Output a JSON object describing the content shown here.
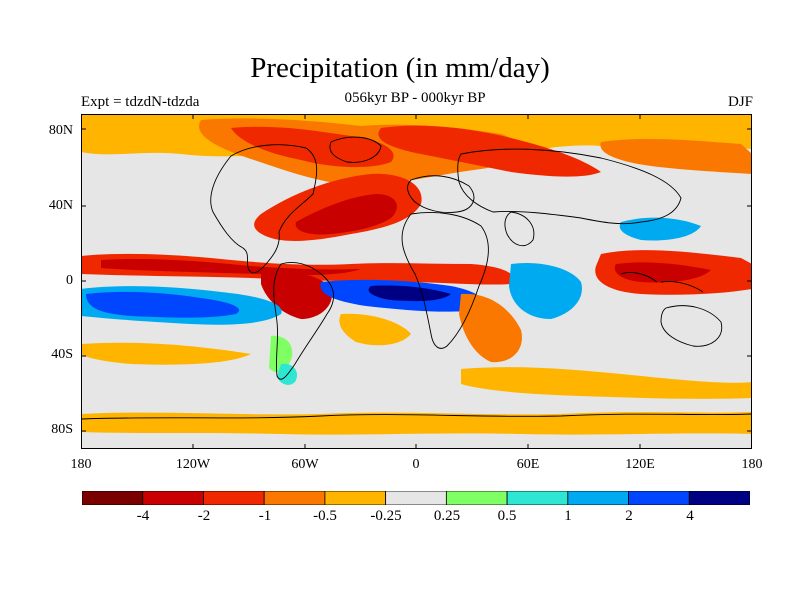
{
  "title": "Precipitation (in mm/day)",
  "subtitle": "056kyr BP - 000kyr BP",
  "left_label": "Expt = tdzdN-tdzda",
  "right_label": "DJF",
  "lat_labels": [
    "80N",
    "40N",
    "0",
    "40S",
    "80S"
  ],
  "lon_labels": [
    "180",
    "120W",
    "60W",
    "0",
    "60E",
    "120E",
    "180"
  ],
  "colorbar": {
    "colors": [
      "#7a0000",
      "#c80000",
      "#f02800",
      "#fa7800",
      "#ffb400",
      "#e6e6e6",
      "#80ff64",
      "#2ee6d2",
      "#00aaf0",
      "#0046ff",
      "#000082"
    ],
    "labels": [
      "-4",
      "-2",
      "-1",
      "-0.5",
      "-0.25",
      "0.25",
      "0.5",
      "1",
      "2",
      "4"
    ]
  }
}
